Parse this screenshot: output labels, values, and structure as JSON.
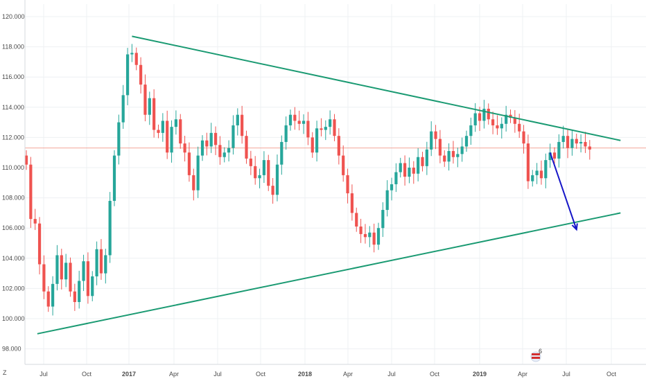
{
  "chart_data": {
    "type": "candlestick",
    "title": "",
    "xlabel": "",
    "ylabel": "",
    "y_axis_side": "left",
    "ylim": [
      97.0,
      121.0
    ],
    "y_ticks": [
      "98.000",
      "100.000",
      "102.000",
      "104.000",
      "106.000",
      "108.000",
      "110.000",
      "112.000",
      "114.000",
      "116.000",
      "118.000",
      "120.000"
    ],
    "x_ticks": [
      "Jul",
      "Oct",
      "2017",
      "Apr",
      "Jul",
      "Oct",
      "2018",
      "Apr",
      "Jul",
      "Oct",
      "2019",
      "Apr",
      "Jul",
      "Oct"
    ],
    "x_tick_bold": [
      false,
      false,
      true,
      false,
      false,
      false,
      true,
      false,
      false,
      false,
      true,
      false,
      false,
      false
    ],
    "grid": true,
    "horizontal_level": 111.3,
    "closes": [
      110.2,
      106.6,
      106.3,
      103.6,
      101.8,
      100.8,
      102.3,
      104.2,
      102.6,
      103.7,
      101.8,
      101.1,
      102.5,
      103.8,
      101.5,
      102.8,
      104.6,
      103.0,
      104.2,
      107.8,
      110.8,
      113.0,
      114.8,
      117.5,
      117.6,
      116.8,
      115.5,
      113.5,
      114.6,
      112.5,
      112.3,
      113.1,
      111.0,
      112.7,
      113.2,
      111.6,
      111.0,
      109.5,
      108.5,
      110.8,
      111.8,
      111.4,
      112.3,
      111.5,
      110.7,
      111.0,
      111.3,
      112.8,
      113.5,
      112.1,
      110.6,
      110.1,
      109.3,
      109.5,
      110.5,
      108.8,
      108.2,
      110.2,
      111.7,
      112.8,
      113.5,
      113.1,
      112.9,
      113.1,
      112.0,
      111.0,
      112.6,
      112.5,
      112.7,
      113.2,
      112.1,
      110.8,
      109.5,
      108.3,
      107.0,
      106.1,
      105.6,
      105.4,
      105.7,
      104.9,
      106.0,
      107.2,
      108.5,
      108.9,
      109.7,
      110.3,
      109.4,
      110.0,
      109.6,
      110.7,
      110.1,
      111.2,
      112.4,
      111.9,
      110.8,
      110.4,
      111.1,
      110.7,
      110.9,
      111.4,
      112.1,
      112.8,
      113.6,
      113.1,
      113.9,
      113.2,
      112.8,
      112.6,
      112.9,
      113.5,
      113.3,
      112.9,
      112.4,
      111.6,
      109.1,
      109.5,
      109.8,
      109.3,
      110.5,
      111.0,
      110.6,
      111.7,
      112.1,
      111.3,
      111.9,
      111.6,
      111.7,
      111.4,
      111.2
    ],
    "trend_lines": [
      {
        "name": "resistance",
        "x1": 24,
        "y1": 118.7,
        "x2": 135,
        "y2": 111.8
      },
      {
        "name": "support",
        "x1": 2.5,
        "y1": 99.0,
        "x2": 135,
        "y2": 107.0
      }
    ],
    "projection_arrow": {
      "x1": 119,
      "y1": 111.0,
      "x2": 125,
      "y2": 105.9
    }
  },
  "ui": {
    "timezone_marker": "Z",
    "event_badge_count": "6"
  }
}
